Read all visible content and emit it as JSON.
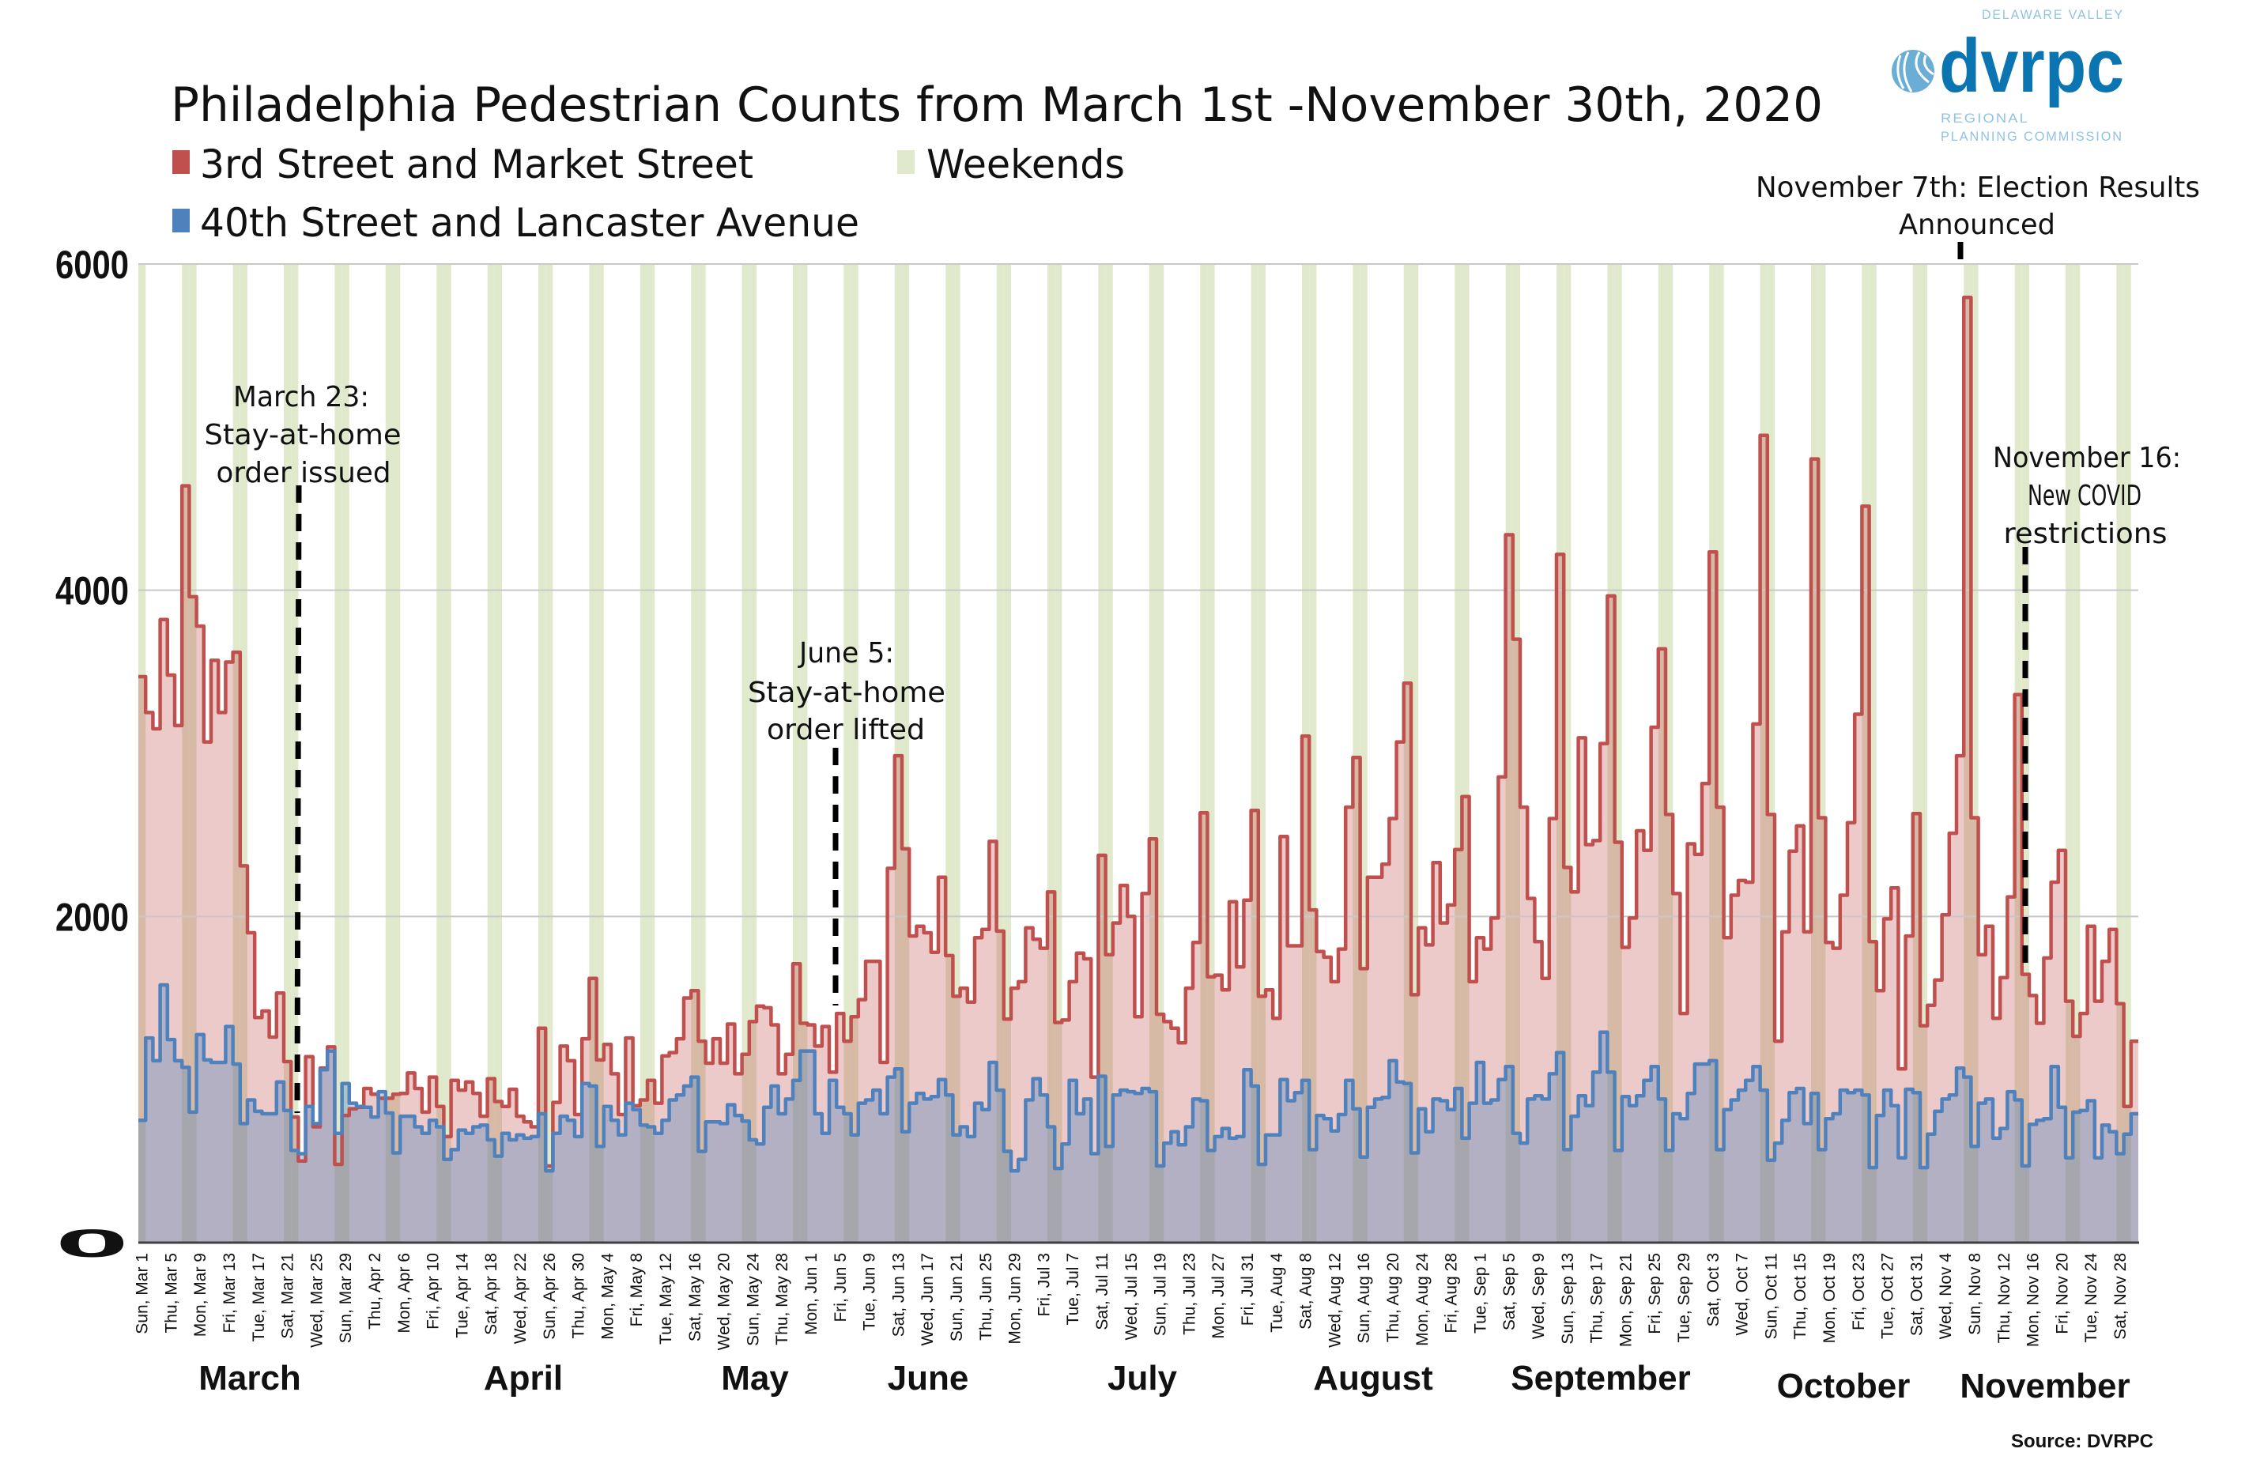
{
  "title": "Philadelphia Pedestrian Counts from March 1st -November 30th, 2020",
  "legend": [
    {
      "label": "3rd Street and Market Street",
      "color": "#c0504d"
    },
    {
      "label": "Weekends",
      "color": "#e1e9cc"
    },
    {
      "label": "40th Street and Lancaster Avenue",
      "color": "#4f81bd"
    }
  ],
  "annotations": [
    {
      "lines": [
        "March 23:",
        "Stay-at-home",
        "order issued"
      ],
      "date": "Mar 23"
    },
    {
      "lines": [
        "June 5:",
        "Stay-at-home",
        "order lifted"
      ],
      "date": "Jun 5"
    },
    {
      "lines": [
        "November 7th: Election Results",
        "Announced"
      ],
      "date": "Nov 7"
    },
    {
      "lines": [
        "November 16:",
        "New COVID",
        "restrictions"
      ],
      "date": "Nov 16"
    }
  ],
  "source": "Source: DVRPC",
  "logo": {
    "wordmark": "dvrpc",
    "top_line": "DELAWARE VALLEY",
    "line2": "REGIONAL",
    "line3": "PLANNING COMMISSION",
    "color": "#0a75b0",
    "light_color": "#90c3e3"
  },
  "chart_data": {
    "type": "line",
    "step": true,
    "area_fill": true,
    "x_range": [
      "2020-03-01",
      "2020-11-30"
    ],
    "x_interval": "daily",
    "ylim": [
      0,
      6000
    ],
    "y_ticks": [
      "0",
      "2000",
      "4000",
      "6000"
    ],
    "grid": true,
    "legend_position": "top-left",
    "weekend_shading": true,
    "weekend_color": "#e1e9cc",
    "x_tick_labels": [
      "Sun, Mar 1",
      "Thu, Mar 5",
      "Mon, Mar 9",
      "Fri, Mar 13",
      "Tue, Mar 17",
      "Sat, Mar 21",
      "Wed, Mar 25",
      "Sun, Mar 29",
      "Thu, Apr 2",
      "Mon, Apr 6",
      "Fri, Apr 10",
      "Tue, Apr 14",
      "Sat, Apr 18",
      "Wed, Apr 22",
      "Sun, Apr 26",
      "Thu, Apr 30",
      "Mon, May 4",
      "Fri, May 8",
      "Tue, May 12",
      "Sat, May 16",
      "Wed, May 20",
      "Sun, May 24",
      "Thu, May 28",
      "Mon, Jun 1",
      "Fri, Jun 5",
      "Tue, Jun 9",
      "Sat, Jun 13",
      "Wed, Jun 17",
      "Sun, Jun 21",
      "Thu, Jun 25",
      "Mon, Jun 29",
      "Fri, Jul 3",
      "Tue, Jul 7",
      "Sat, Jul 11",
      "Wed, Jul 15",
      "Sun, Jul 19",
      "Thu, Jul 23",
      "Mon, Jul 27",
      "Fri, Jul 31",
      "Tue, Aug 4",
      "Sat, Aug 8",
      "Wed, Aug 12",
      "Sun, Aug 16",
      "Thu, Aug 20",
      "Mon, Aug 24",
      "Fri, Aug 28",
      "Tue, Sep 1",
      "Sat, Sep 5",
      "Wed, Sep 9",
      "Sun, Sep 13",
      "Thu, Sep 17",
      "Mon, Sep 21",
      "Fri, Sep 25",
      "Tue, Sep 29",
      "Sat, Oct 3",
      "Wed, Oct 7",
      "Sun, Oct 11",
      "Thu, Oct 15",
      "Mon, Oct 19",
      "Fri, Oct 23",
      "Tue, Oct 27",
      "Sat, Oct 31",
      "Wed, Nov 4",
      "Sun, Nov 8",
      "Thu, Nov 12",
      "Mon, Nov 16",
      "Fri, Nov 20",
      "Tue, Nov 24",
      "Sat, Nov 28"
    ],
    "month_labels": [
      "March",
      "April",
      "May",
      "June",
      "July",
      "August",
      "September",
      "October",
      "November"
    ],
    "series": [
      {
        "name": "3rd Street and Market Street",
        "color": "#c0504d",
        "values": [
          3470,
          3250,
          3150,
          3820,
          3480,
          3170,
          4640,
          3960,
          3780,
          3070,
          3570,
          3250,
          3560,
          3620,
          2310,
          1900,
          1380,
          1420,
          1260,
          1530,
          1110,
          770,
          500,
          1140,
          710,
          1070,
          1200,
          480,
          780,
          820,
          830,
          945,
          910,
          885,
          885,
          910,
          915,
          1040,
          945,
          800,
          1015,
          835,
          650,
          995,
          935,
          985,
          915,
          775,
          1005,
          865,
          835,
          940,
          775,
          740,
          710,
          1315,
          470,
          860,
          1205,
          1115,
          785,
          1250,
          1620,
          1120,
          1215,
          1035,
          785,
          1255,
          840,
          875,
          995,
          855,
          1145,
          1165,
          1250,
          1500,
          1545,
          1235,
          1100,
          1250,
          1100,
          1340,
          1035,
          1155,
          1355,
          1450,
          1440,
          1335,
          1035,
          1155,
          1710,
          1345,
          1335,
          1205,
          1325,
          1045,
          1405,
          1235,
          1385,
          1490,
          1725,
          1725,
          1105,
          2295,
          2985,
          2415,
          1880,
          1940,
          1900,
          1780,
          2240,
          1760,
          1510,
          1560,
          1475,
          1870,
          1920,
          2460,
          1910,
          1370,
          1560,
          1600,
          1930,
          1860,
          1805,
          2150,
          1350,
          1365,
          1600,
          1775,
          1740,
          1015,
          2375,
          1765,
          1960,
          2190,
          2000,
          1385,
          2140,
          2475,
          1400,
          1355,
          1315,
          1225,
          1560,
          1840,
          2635,
          1630,
          1640,
          1550,
          2090,
          1690,
          2100,
          2650,
          1510,
          1550,
          1375,
          2490,
          1820,
          1820,
          3105,
          2040,
          1785,
          1750,
          1600,
          1800,
          2670,
          2975,
          1680,
          2240,
          2240,
          2320,
          2600,
          3070,
          3430,
          1520,
          1930,
          1825,
          2330,
          1960,
          2070,
          2410,
          2735,
          1600,
          1870,
          1800,
          1990,
          2855,
          4340,
          3700,
          2670,
          2110,
          1845,
          1620,
          2600,
          4220,
          2300,
          2150,
          3095,
          2440,
          2465,
          3060,
          3965,
          2455,
          1810,
          1990,
          2525,
          2405,
          3160,
          3640,
          2625,
          2140,
          1405,
          2445,
          2380,
          2815,
          4235,
          2670,
          1870,
          2130,
          2220,
          2210,
          3180,
          4950,
          2625,
          1235,
          1905,
          2400,
          2555,
          1905,
          4805,
          2605,
          1840,
          1805,
          2130,
          2575,
          3240,
          4515,
          1845,
          1545,
          1985,
          2175,
          1065,
          1880,
          2630,
          1330,
          1455,
          1610,
          2010,
          2510,
          2985,
          5795,
          2605,
          1765,
          1940,
          1375,
          1625,
          2120,
          3360,
          1645,
          1515,
          1345,
          1745,
          2210,
          2405,
          1480,
          1265,
          1405,
          1940,
          1480,
          1725,
          1920,
          1465,
          835,
          1235
        ]
      },
      {
        "name": "40th Street and Lancaster Avenue",
        "color": "#4f81bd",
        "values": [
          750,
          1255,
          1115,
          1580,
          1245,
          1115,
          1075,
          800,
          1275,
          1120,
          1105,
          1105,
          1325,
          1095,
          730,
          875,
          805,
          790,
          790,
          985,
          810,
          565,
          545,
          835,
          730,
          1060,
          1175,
          670,
          975,
          855,
          835,
          830,
          770,
          925,
          795,
          550,
          775,
          775,
          710,
          670,
          750,
          710,
          510,
          570,
          690,
          670,
          710,
          720,
          630,
          530,
          670,
          630,
          660,
          640,
          650,
          790,
          440,
          670,
          775,
          750,
          650,
          975,
          960,
          590,
          835,
          750,
          660,
          855,
          815,
          720,
          710,
          670,
          750,
          875,
          905,
          960,
          1015,
          560,
          740,
          740,
          730,
          845,
          780,
          745,
          630,
          605,
          830,
          960,
          790,
          880,
          995,
          1175,
          1175,
          790,
          670,
          995,
          830,
          790,
          660,
          855,
          875,
          935,
          790,
          1015,
          1065,
          680,
          855,
          915,
          880,
          895,
          1000,
          905,
          660,
          710,
          650,
          855,
          815,
          1105,
          935,
          560,
          440,
          510,
          875,
          1005,
          905,
          710,
          455,
          605,
          995,
          790,
          880,
          545,
          1020,
          590,
          905,
          935,
          925,
          915,
          945,
          925,
          470,
          610,
          680,
          600,
          710,
          880,
          870,
          565,
          650,
          700,
          640,
          650,
          1060,
          960,
          480,
          660,
          660,
          1000,
          870,
          920,
          995,
          570,
          780,
          760,
          685,
          785,
          995,
          820,
          525,
          830,
          880,
          890,
          1115,
          985,
          975,
          550,
          820,
          680,
          880,
          870,
          815,
          945,
          640,
          855,
          1105,
          855,
          875,
          1000,
          1080,
          670,
          610,
          880,
          900,
          880,
          1035,
          1165,
          570,
          775,
          900,
          840,
          1045,
          1290,
          1045,
          565,
          895,
          840,
          900,
          995,
          1080,
          880,
          565,
          790,
          760,
          915,
          1095,
          1095,
          1115,
          570,
          815,
          875,
          935,
          995,
          1080,
          935,
          505,
          610,
          750,
          920,
          945,
          730,
          915,
          570,
          760,
          790,
          935,
          920,
          935,
          905,
          460,
          780,
          935,
          840,
          520,
          940,
          920,
          460,
          665,
          805,
          880,
          905,
          1070,
          1015,
          590,
          855,
          880,
          640,
          700,
          925,
          875,
          470,
          725,
          750,
          760,
          1080,
          830,
          520,
          800,
          810,
          870,
          520,
          720,
          680,
          545,
          665,
          790
        ]
      }
    ]
  }
}
